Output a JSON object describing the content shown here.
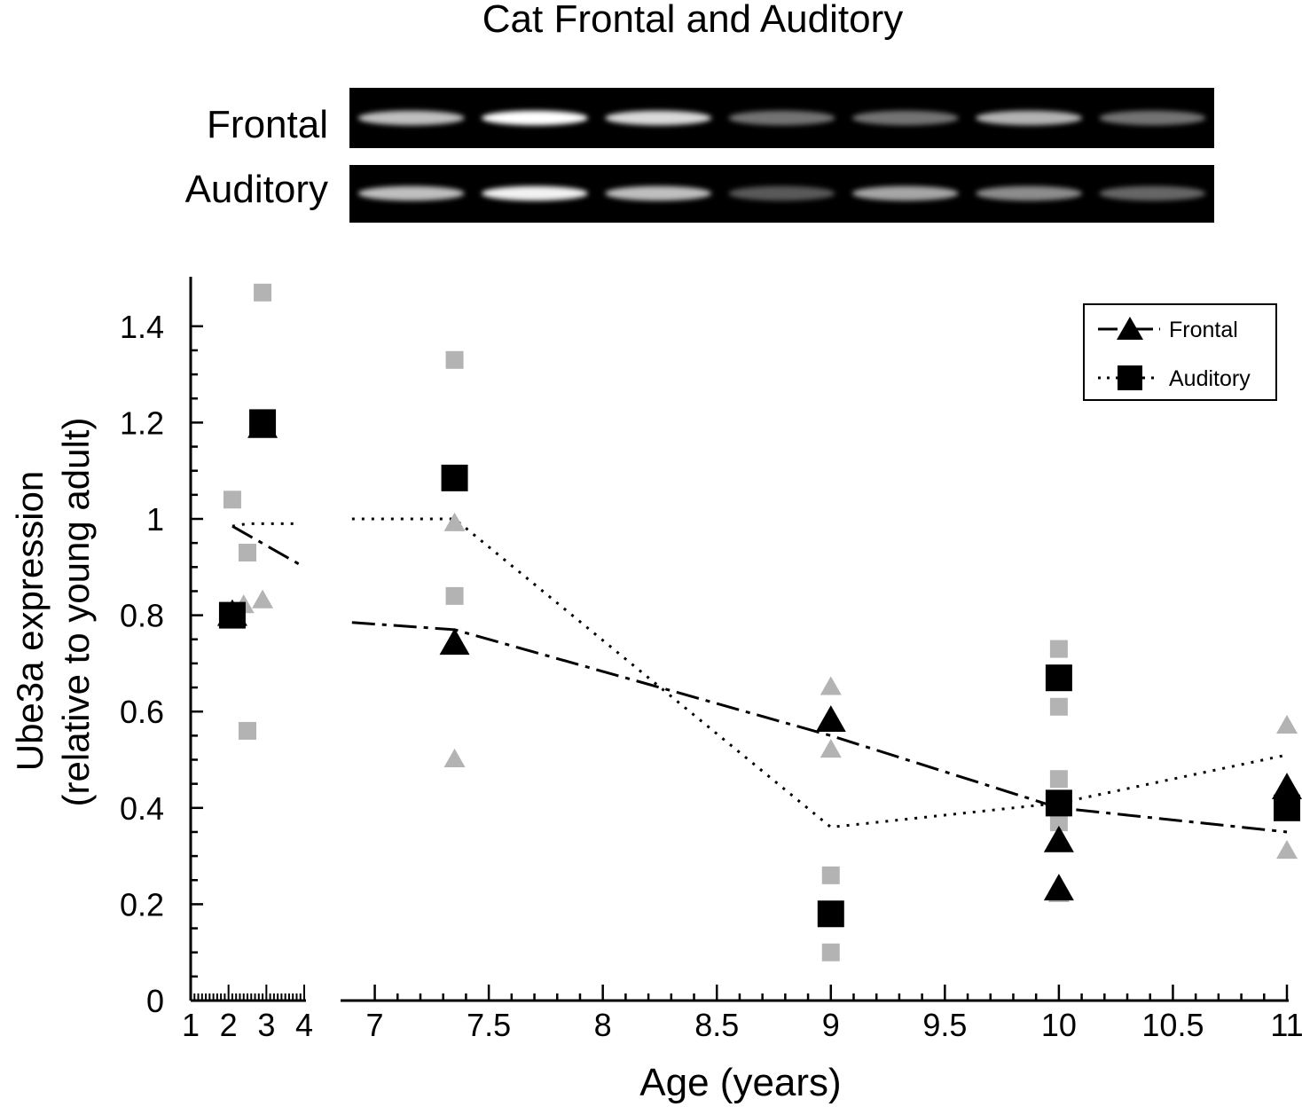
{
  "chart_data": {
    "type": "scatter",
    "title": "Cat Frontal and Auditory",
    "xlabel": "Age (years)",
    "ylabel_line1": "Ube3a expression",
    "ylabel_line2": "(relative to young adult)",
    "blot_rows": [
      "Frontal",
      "Auditory"
    ],
    "blot_lane_count": 7,
    "x_axis_break": true,
    "xlim_left": [
      1,
      4
    ],
    "xlim_right": [
      6.85,
      11
    ],
    "ylim": [
      0,
      1.5
    ],
    "x_ticks_left": [
      "1",
      "2",
      "3",
      "4"
    ],
    "x_ticks_right": [
      "7",
      "7.5",
      "8",
      "8.5",
      "9",
      "9.5",
      "10",
      "10.5",
      "11"
    ],
    "y_ticks": [
      "0",
      "0.2",
      "0.4",
      "0.6",
      "0.8",
      "1",
      "1.2",
      "1.4"
    ],
    "legend": {
      "position": "top-right",
      "entries": [
        "Frontal",
        "Auditory"
      ]
    },
    "colors": {
      "mean_marker": "#000000",
      "individual_marker": "#b3b3b3"
    },
    "series": [
      {
        "name": "Frontal",
        "marker": "triangle",
        "line_style": "dash-dot",
        "mean_points": [
          {
            "x": 2.1,
            "y": 0.8
          },
          {
            "x": 2.9,
            "y": 1.19
          },
          {
            "x": 7.35,
            "y": 0.74
          },
          {
            "x": 9.0,
            "y": 0.58
          },
          {
            "x": 10.0,
            "y": 0.33
          },
          {
            "x": 10.0,
            "y": 0.23
          },
          {
            "x": 11.0,
            "y": 0.44
          }
        ],
        "individual_points": [
          {
            "x": 2.4,
            "y": 0.82
          },
          {
            "x": 2.9,
            "y": 0.83
          },
          {
            "x": 7.35,
            "y": 0.99
          },
          {
            "x": 7.35,
            "y": 0.5
          },
          {
            "x": 9.0,
            "y": 0.65
          },
          {
            "x": 9.0,
            "y": 0.52
          },
          {
            "x": 10.0,
            "y": 0.24
          },
          {
            "x": 10.0,
            "y": 0.22
          },
          {
            "x": 11.0,
            "y": 0.57
          },
          {
            "x": 11.0,
            "y": 0.31
          }
        ],
        "trend_line": [
          {
            "x": 2.1,
            "y": 0.985
          },
          {
            "x": 4.0,
            "y": 0.9
          },
          {
            "x": 6.9,
            "y": 0.785
          },
          {
            "x": 7.35,
            "y": 0.77
          },
          {
            "x": 9.0,
            "y": 0.55
          },
          {
            "x": 10.0,
            "y": 0.4
          },
          {
            "x": 11.0,
            "y": 0.35
          }
        ]
      },
      {
        "name": "Auditory",
        "marker": "square",
        "line_style": "dotted",
        "mean_points": [
          {
            "x": 2.1,
            "y": 0.8
          },
          {
            "x": 2.9,
            "y": 1.2
          },
          {
            "x": 7.35,
            "y": 1.085
          },
          {
            "x": 9.0,
            "y": 0.18
          },
          {
            "x": 10.0,
            "y": 0.67
          },
          {
            "x": 10.0,
            "y": 0.41
          },
          {
            "x": 11.0,
            "y": 0.4
          }
        ],
        "individual_points": [
          {
            "x": 2.1,
            "y": 1.04
          },
          {
            "x": 2.5,
            "y": 0.93
          },
          {
            "x": 2.5,
            "y": 0.56
          },
          {
            "x": 2.9,
            "y": 1.47
          },
          {
            "x": 7.35,
            "y": 1.33
          },
          {
            "x": 7.35,
            "y": 0.84
          },
          {
            "x": 9.0,
            "y": 0.26
          },
          {
            "x": 9.0,
            "y": 0.1
          },
          {
            "x": 10.0,
            "y": 0.73
          },
          {
            "x": 10.0,
            "y": 0.61
          },
          {
            "x": 10.0,
            "y": 0.46
          },
          {
            "x": 10.0,
            "y": 0.37
          }
        ],
        "trend_line": [
          {
            "x": 2.1,
            "y": 0.985
          },
          {
            "x": 2.5,
            "y": 0.99
          },
          {
            "x": 3.9,
            "y": 0.99
          },
          {
            "x": 6.9,
            "y": 1.0
          },
          {
            "x": 7.35,
            "y": 1.0
          },
          {
            "x": 9.0,
            "y": 0.36
          },
          {
            "x": 10.0,
            "y": 0.41
          },
          {
            "x": 11.0,
            "y": 0.51
          }
        ]
      }
    ]
  }
}
